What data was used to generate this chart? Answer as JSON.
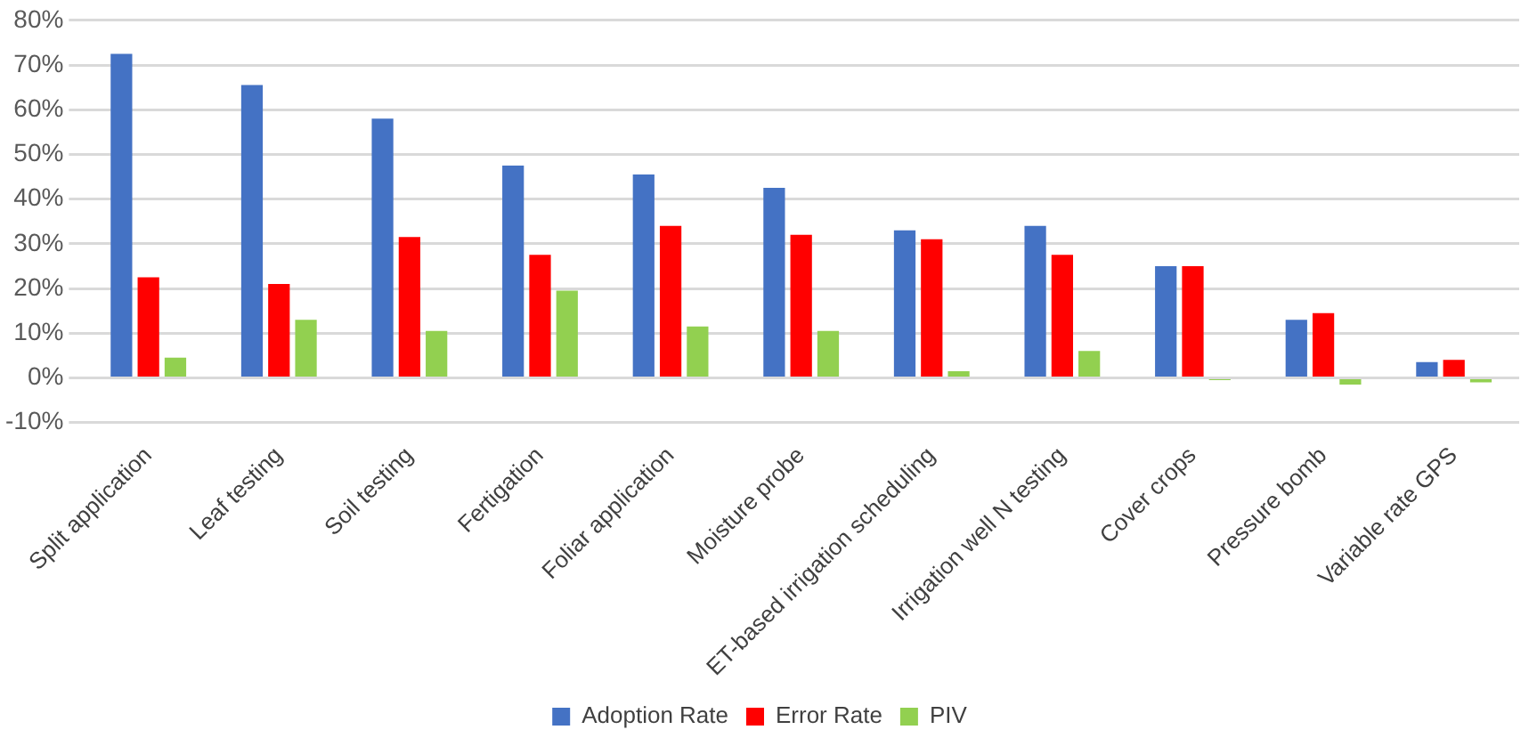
{
  "chart_data": {
    "type": "bar",
    "categories": [
      "Split application",
      "Leaf testing",
      "Soil testing",
      "Fertigation",
      "Foliar application",
      "Moisture probe",
      "ET-based irrigation scheduling",
      "Irrigation well N testing",
      "Cover crops",
      "Pressure bomb",
      "Variable rate GPS"
    ],
    "series": [
      {
        "name": "Adoption Rate",
        "color": "#4472c4",
        "values": [
          72.5,
          65.5,
          58,
          47.5,
          45.5,
          42.5,
          33,
          34,
          25,
          13,
          3.5
        ]
      },
      {
        "name": "Error Rate",
        "color": "#ff0000",
        "values": [
          22.5,
          21,
          31.5,
          27.5,
          34,
          32,
          31,
          27.5,
          25,
          14.5,
          4
        ]
      },
      {
        "name": "PIV",
        "color": "#92d050",
        "values": [
          4.5,
          13,
          10.5,
          19.5,
          11.5,
          10.5,
          1.5,
          6,
          -0.5,
          -1.5,
          -1
        ]
      }
    ],
    "ylim": [
      -10,
      80
    ],
    "yticks": [
      {
        "value": -10,
        "label": "-10%"
      },
      {
        "value": 0,
        "label": "0%"
      },
      {
        "value": 10,
        "label": "10%"
      },
      {
        "value": 20,
        "label": "20%"
      },
      {
        "value": 30,
        "label": "30%"
      },
      {
        "value": 40,
        "label": "40%"
      },
      {
        "value": 50,
        "label": "50%"
      },
      {
        "value": 60,
        "label": "60%"
      },
      {
        "value": 70,
        "label": "70%"
      },
      {
        "value": 80,
        "label": "80%"
      }
    ],
    "grid": "y",
    "legend": "bottom"
  }
}
